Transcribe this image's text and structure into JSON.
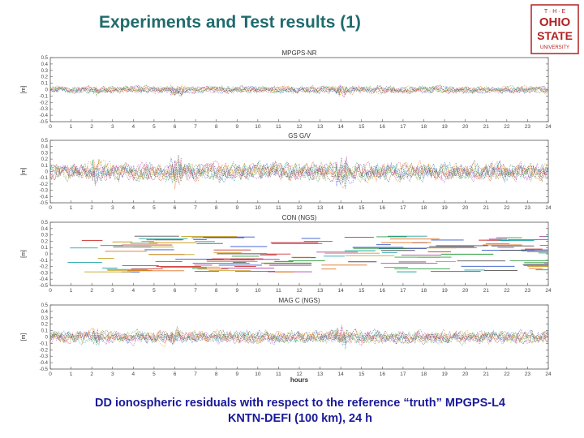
{
  "slide": {
    "title": "Experiments and Test results (1)",
    "caption_line1": "DD ionospheric residuals with respect to the reference “truth” MPGPS-L4",
    "caption_line2": "KNTN-DEFI (100 km), 24 h"
  },
  "logo": {
    "line1": "T · H · E",
    "line2": "OHIO",
    "line3": "STATE",
    "line4": "UNIVERSITY",
    "color": "#b22222"
  },
  "colors": {
    "title": "#1f6b6e",
    "caption": "#1a1a99",
    "series": [
      "#3355cc",
      "#2e9e3e",
      "#cc3333",
      "#b040b0",
      "#1fa5a5",
      "#c8a020",
      "#555555",
      "#e07020",
      "#7fbf3f",
      "#8060d0"
    ]
  },
  "chart_data": [
    {
      "type": "line",
      "title": "MPGPS-NR",
      "ylabel": "[m]",
      "xlabel": "",
      "xlim": [
        0,
        24
      ],
      "x_ticks": [
        "0",
        "1",
        "2",
        "3",
        "4",
        "5",
        "6",
        "7",
        "8",
        "9",
        "10",
        "11",
        "12",
        "13",
        "14",
        "15",
        "16",
        "17",
        "18",
        "19",
        "20",
        "21",
        "22",
        "23",
        "24"
      ],
      "ylim": [
        -0.5,
        0.5
      ],
      "y_ticks": [
        "0.5",
        "0.4",
        "0.3",
        "0.2",
        "0.1",
        "0",
        "-0.1",
        "-0.2",
        "-0.3",
        "-0.4",
        "-0.5"
      ],
      "amplitude": 0.05,
      "style": "dots"
    },
    {
      "type": "line",
      "title": "GS G/V",
      "ylabel": "[m]",
      "xlabel": "",
      "xlim": [
        0,
        24
      ],
      "x_ticks": [
        "0",
        "1",
        "2",
        "3",
        "4",
        "5",
        "6",
        "7",
        "8",
        "9",
        "10",
        "11",
        "12",
        "13",
        "14",
        "15",
        "16",
        "17",
        "18",
        "19",
        "20",
        "21",
        "22",
        "23",
        "24"
      ],
      "ylim": [
        -0.5,
        0.5
      ],
      "y_ticks": [
        "0.5",
        "0.4",
        "0.3",
        "0.2",
        "0.1",
        "0",
        "-0.1",
        "-0.2",
        "-0.3",
        "-0.4",
        "-0.5"
      ],
      "amplitude": 0.13,
      "style": "dots"
    },
    {
      "type": "line",
      "title": "CON (NGS)",
      "ylabel": "[m]",
      "xlabel": "",
      "xlim": [
        0,
        24
      ],
      "x_ticks": [
        "0",
        "1",
        "2",
        "3",
        "4",
        "5",
        "6",
        "7",
        "8",
        "9",
        "10",
        "11",
        "12",
        "13",
        "14",
        "15",
        "16",
        "17",
        "18",
        "19",
        "20",
        "21",
        "22",
        "23",
        "24"
      ],
      "ylim": [
        -0.5,
        0.5
      ],
      "y_ticks": [
        "0.5",
        "0.4",
        "0.3",
        "0.2",
        "0.1",
        "0",
        "-0.1",
        "-0.2",
        "-0.3",
        "-0.4",
        "-0.5"
      ],
      "amplitude": 0.12,
      "style": "steps"
    },
    {
      "type": "line",
      "title": "MAG C (NGS)",
      "ylabel": "[m]",
      "xlabel": "hours",
      "xlim": [
        0,
        24
      ],
      "x_ticks": [
        "0",
        "1",
        "2",
        "3",
        "4",
        "5",
        "6",
        "7",
        "8",
        "9",
        "10",
        "11",
        "12",
        "13",
        "14",
        "15",
        "16",
        "17",
        "18",
        "19",
        "20",
        "21",
        "22",
        "23",
        "24"
      ],
      "ylim": [
        -0.5,
        0.5
      ],
      "y_ticks": [
        "0.5",
        "0.4",
        "0.3",
        "0.2",
        "0.1",
        "0",
        "-0.1",
        "-0.2",
        "-0.3",
        "-0.4",
        "-0.5"
      ],
      "amplitude": 0.09,
      "style": "dots"
    }
  ]
}
